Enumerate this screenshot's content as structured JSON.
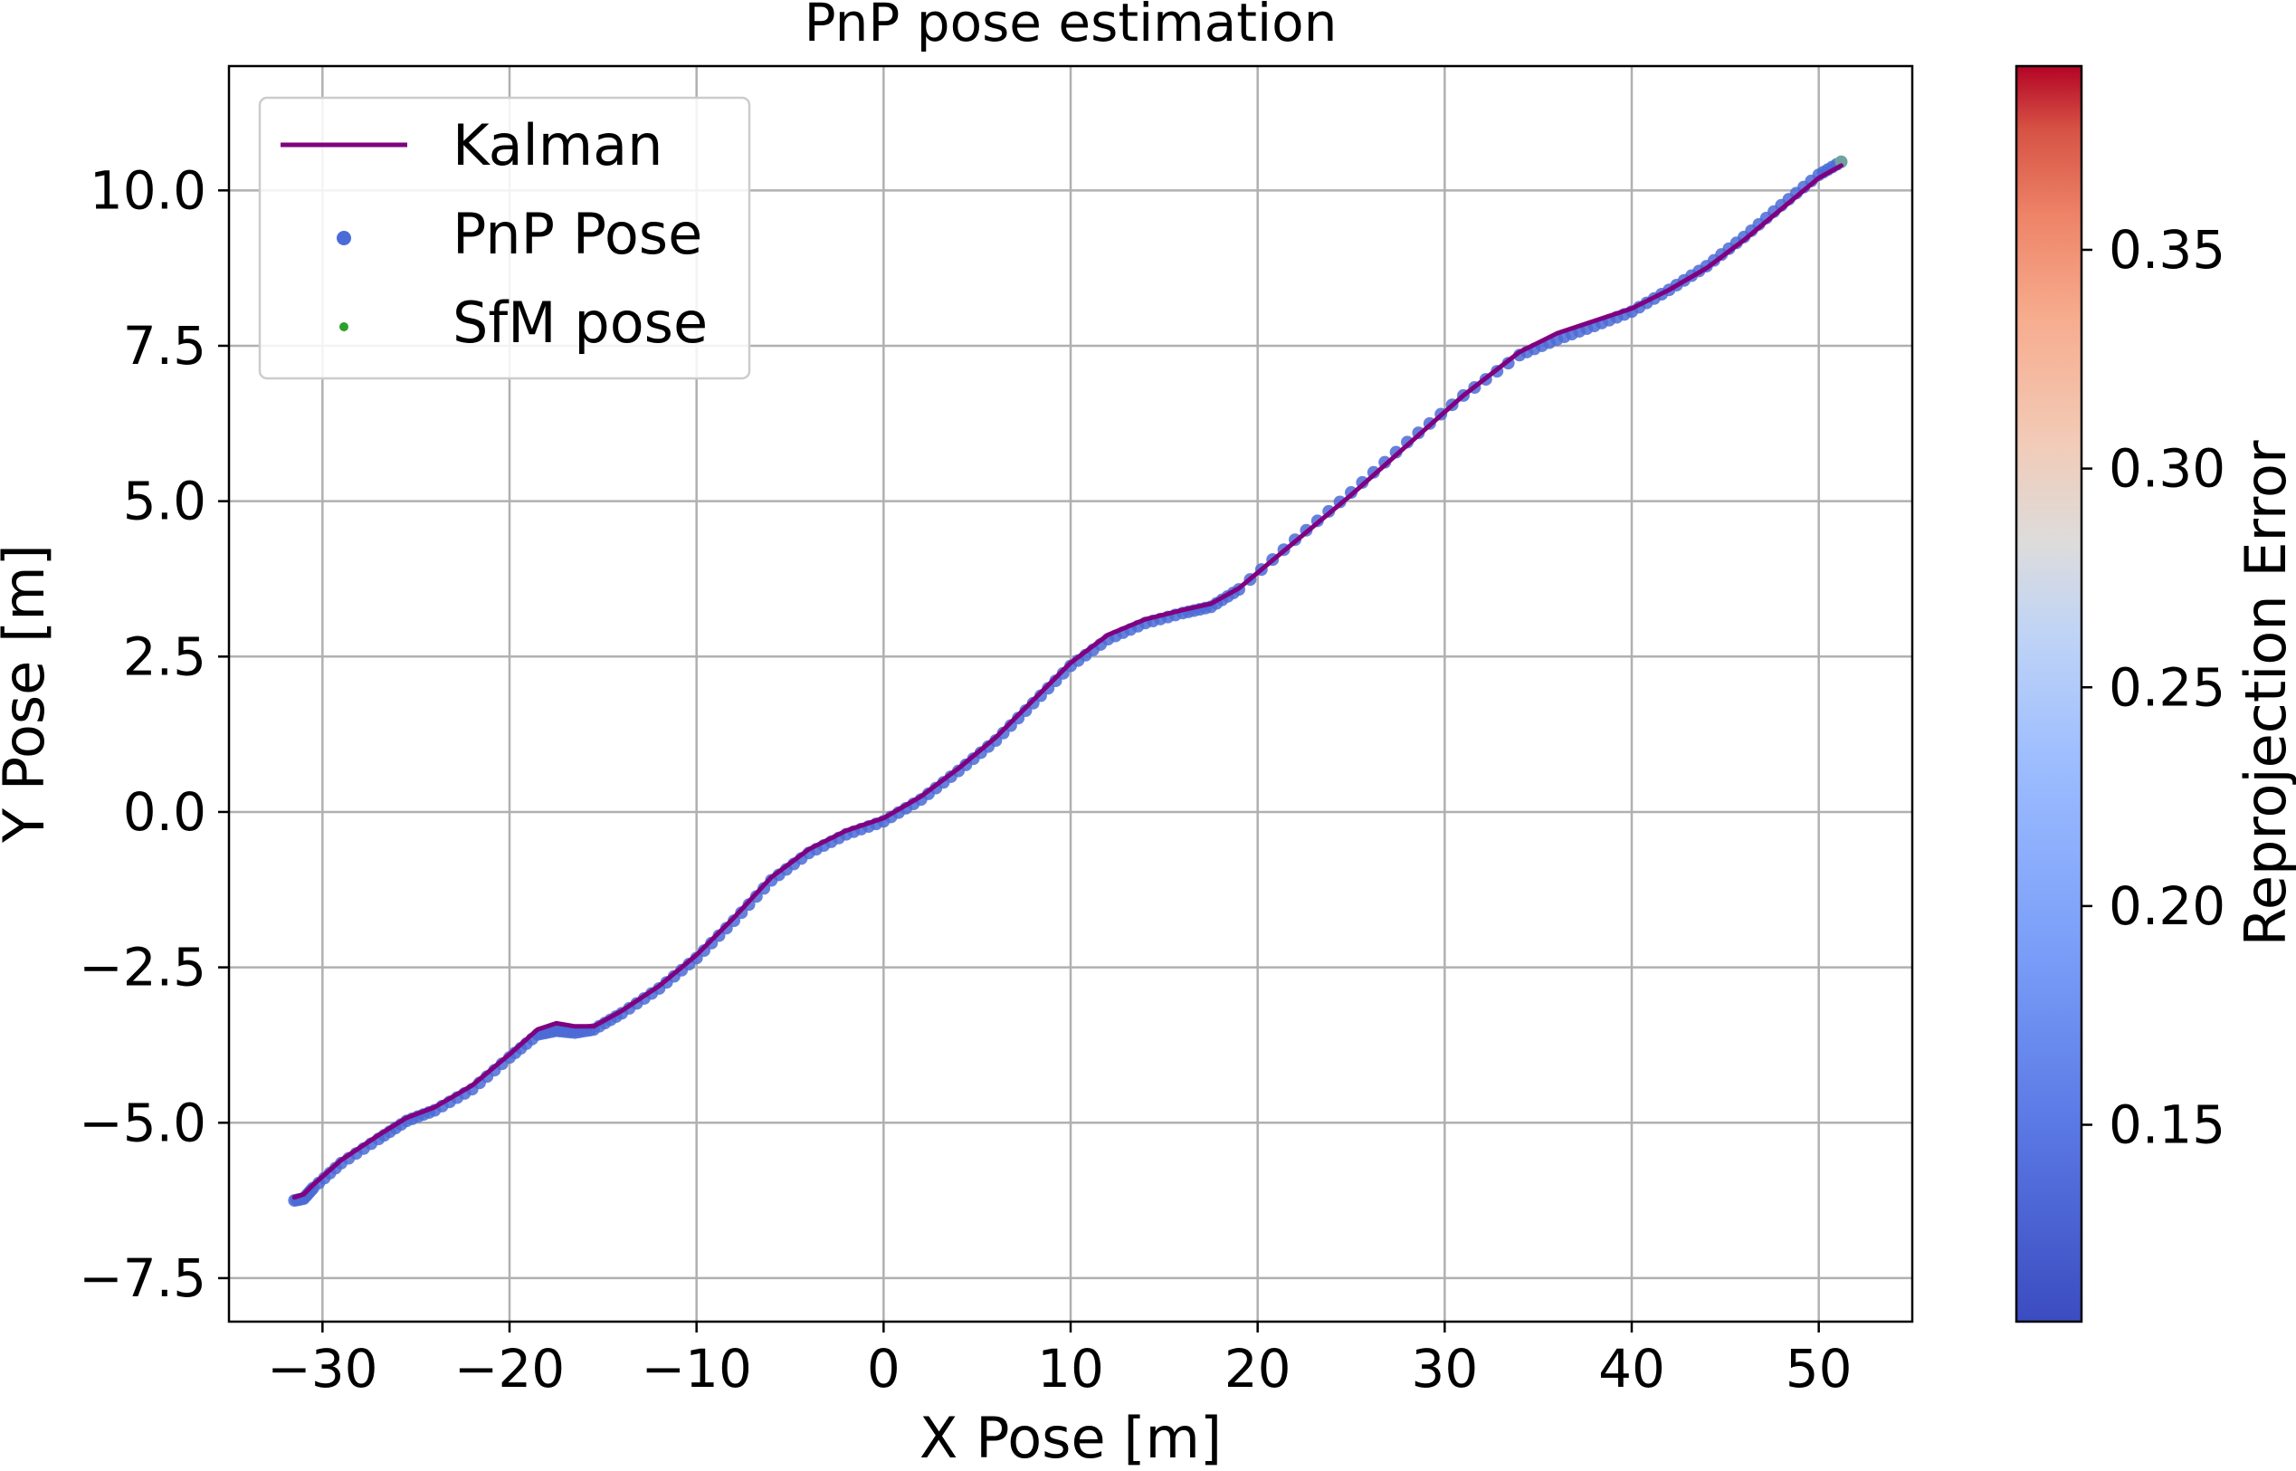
{
  "chart_data": {
    "type": "scatter",
    "title": "PnP pose estimation",
    "xlabel": "X Pose [m]",
    "ylabel": "Y Pose [m]",
    "xlim": [
      -35,
      55
    ],
    "ylim": [
      -8.2,
      12.0
    ],
    "xticks": [
      -30,
      -20,
      -10,
      0,
      10,
      20,
      30,
      40,
      50
    ],
    "xtick_labels": [
      "−30",
      "−20",
      "−10",
      "0",
      "10",
      "20",
      "30",
      "40",
      "50"
    ],
    "yticks": [
      -7.5,
      -5.0,
      -2.5,
      0.0,
      2.5,
      5.0,
      7.5,
      10.0
    ],
    "ytick_labels": [
      "−7.5",
      "−5.0",
      "−2.5",
      "0.0",
      "2.5",
      "5.0",
      "7.5",
      "10.0"
    ],
    "grid": true,
    "legend": {
      "position": "upper-left",
      "entries": [
        {
          "label": "Kalman",
          "marker": "line",
          "color": "#800080"
        },
        {
          "label": "PnP Pose",
          "marker": "dot",
          "color": "#4b6bd6"
        },
        {
          "label": "SfM pose",
          "marker": "small-dot",
          "color": "#2ca02c"
        }
      ]
    },
    "colorbar": {
      "label": "Reprojection Error",
      "cmap": "coolwarm",
      "range": [
        0.105,
        0.392
      ],
      "ticks": [
        0.15,
        0.2,
        0.25,
        0.3,
        0.35
      ],
      "tick_labels": [
        "0.15",
        "0.20",
        "0.25",
        "0.30",
        "0.35"
      ]
    },
    "series": [
      {
        "name": "Kalman",
        "kind": "line",
        "color": "#800080",
        "x": [
          -31.5,
          -31.0,
          -30.5,
          -29.0,
          -27.0,
          -25.5,
          -24.0,
          -22.0,
          -20.0,
          -18.5,
          -17.5,
          -16.5,
          -15.5,
          -14.0,
          -12.0,
          -10.0,
          -8.0,
          -6.0,
          -4.0,
          -2.0,
          0.0,
          2.0,
          4.0,
          6.0,
          8.0,
          10.0,
          12.0,
          14.0,
          16.0,
          17.5,
          19.0,
          22.0,
          25.0,
          28.0,
          31.0,
          34.0,
          36.0,
          38.0,
          40.0,
          42.0,
          44.0,
          46.0,
          48.0,
          50.0,
          51.2
        ],
        "y": [
          -6.2,
          -6.15,
          -6.0,
          -5.6,
          -5.2,
          -4.92,
          -4.75,
          -4.4,
          -3.9,
          -3.5,
          -3.4,
          -3.45,
          -3.45,
          -3.2,
          -2.8,
          -2.3,
          -1.7,
          -1.05,
          -0.6,
          -0.3,
          -0.1,
          0.25,
          0.7,
          1.2,
          1.8,
          2.4,
          2.85,
          3.1,
          3.25,
          3.35,
          3.6,
          4.35,
          5.1,
          5.9,
          6.7,
          7.4,
          7.7,
          7.9,
          8.1,
          8.4,
          8.75,
          9.2,
          9.7,
          10.2,
          10.4
        ]
      },
      {
        "name": "PnP Pose",
        "kind": "scatter",
        "color": "#4b6bd6",
        "x": [
          -31.5,
          -31.0,
          -30.5,
          -29.0,
          -27.0,
          -25.5,
          -24.0,
          -22.0,
          -20.0,
          -18.5,
          -17.5,
          -16.5,
          -15.5,
          -14.0,
          -12.0,
          -10.0,
          -8.0,
          -6.0,
          -4.0,
          -2.0,
          0.0,
          2.0,
          4.0,
          6.0,
          8.0,
          10.0,
          12.0,
          14.0,
          16.0,
          17.5,
          19.0,
          22.0,
          25.0,
          28.0,
          31.0,
          34.0,
          36.0,
          38.0,
          40.0,
          42.0,
          44.0,
          46.0,
          48.0,
          50.0,
          51.2
        ],
        "y": [
          -6.25,
          -6.22,
          -6.05,
          -5.65,
          -5.26,
          -4.97,
          -4.8,
          -4.46,
          -3.95,
          -3.58,
          -3.52,
          -3.55,
          -3.5,
          -3.24,
          -2.84,
          -2.35,
          -1.75,
          -1.1,
          -0.66,
          -0.36,
          -0.15,
          0.2,
          0.66,
          1.15,
          1.75,
          2.35,
          2.78,
          3.04,
          3.2,
          3.3,
          3.58,
          4.38,
          5.14,
          5.95,
          6.7,
          7.35,
          7.6,
          7.82,
          8.05,
          8.4,
          8.78,
          9.25,
          9.76,
          10.25,
          10.46
        ]
      }
    ]
  }
}
